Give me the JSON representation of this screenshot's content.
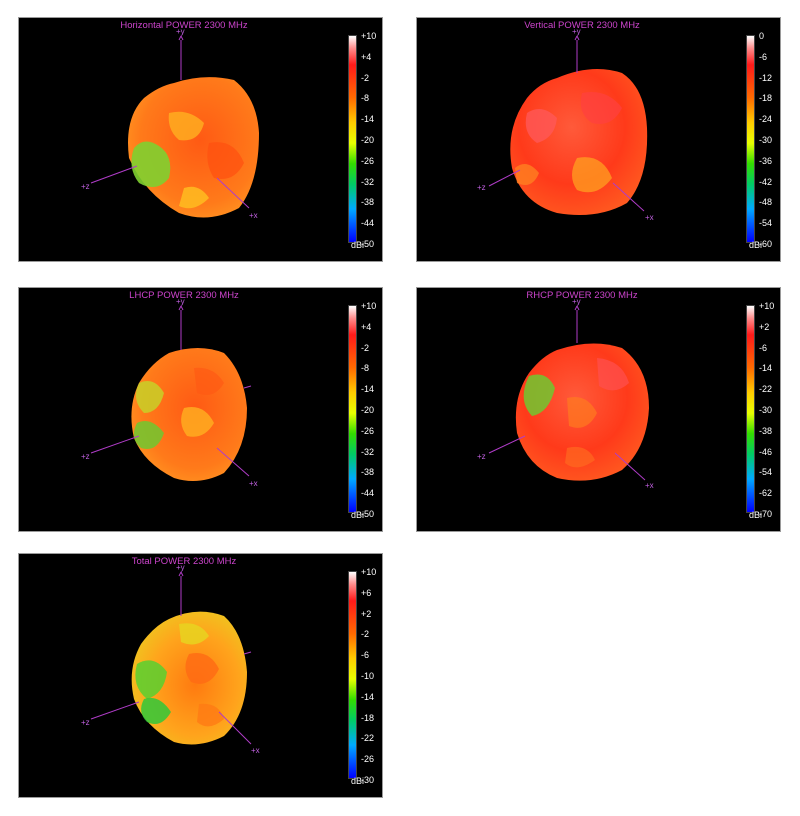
{
  "colors": {
    "panel_background": "#000000",
    "title_color": "#cc44cc",
    "axis_color": "#b03cc8",
    "label_color": "#ffffff"
  },
  "unit": "dBi",
  "panels": [
    {
      "id": "horizontal",
      "title": "Horizontal POWER 2300  MHz",
      "scale": [
        "+10",
        "+4",
        "-2",
        "-8",
        "-14",
        "-20",
        "-26",
        "-32",
        "-38",
        "-44",
        "-50"
      ],
      "axes": {
        "y": "+y",
        "z": "+z",
        "x": "+x"
      },
      "dominant": "orange-red",
      "hot_spot": "green"
    },
    {
      "id": "vertical",
      "title": "Vertical POWER 2300  MHz",
      "scale": [
        "0",
        "-6",
        "-12",
        "-18",
        "-24",
        "-30",
        "-36",
        "-42",
        "-48",
        "-54",
        "-60"
      ],
      "axes": {
        "y": "+y",
        "z": "+z",
        "x": "+x"
      },
      "dominant": "red",
      "hot_spot": "yellow"
    },
    {
      "id": "lhcp",
      "title": "LHCP POWER 2300  MHz",
      "scale": [
        "+10",
        "+4",
        "-2",
        "-8",
        "-14",
        "-20",
        "-26",
        "-32",
        "-38",
        "-44",
        "-50"
      ],
      "axes": {
        "y": "+y",
        "z": "+z",
        "x": "+x"
      },
      "dominant": "orange",
      "hot_spot": "green"
    },
    {
      "id": "rhcp",
      "title": "RHCP POWER 2300  MHz",
      "scale": [
        "+10",
        "+2",
        "-6",
        "-14",
        "-22",
        "-30",
        "-38",
        "-46",
        "-54",
        "-62",
        "-70"
      ],
      "axes": {
        "y": "+y",
        "z": "+z",
        "x": "+x"
      },
      "dominant": "red",
      "hot_spot": "green"
    },
    {
      "id": "total",
      "title": "Total POWER 2300  MHz",
      "scale": [
        "+10",
        "+6",
        "+2",
        "-2",
        "-6",
        "-10",
        "-14",
        "-18",
        "-22",
        "-26",
        "-30"
      ],
      "axes": {
        "y": "+y",
        "z": "+z",
        "x": "+x"
      },
      "dominant": "yellow-orange",
      "hot_spot": "green"
    }
  ]
}
